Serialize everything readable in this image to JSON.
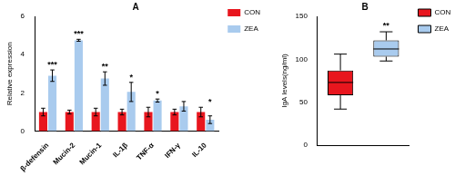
{
  "chart_data": [
    {
      "type": "bar",
      "title": "A",
      "y_label": "Relative expression",
      "categories": [
        "β-defensin",
        "Mucin-2",
        "Mucin-1",
        "IL-1β",
        "TNF-α",
        "IFN-γ",
        "IL-10"
      ],
      "series": [
        {
          "name": "CON",
          "color": "#e8161e",
          "values": [
            1.0,
            1.0,
            1.0,
            1.0,
            1.0,
            1.0,
            1.0
          ],
          "errors": [
            0.2,
            0.1,
            0.2,
            0.15,
            0.25,
            0.15,
            0.25
          ]
        },
        {
          "name": "ZEA",
          "color": "#a9cbee",
          "values": [
            2.9,
            4.75,
            2.75,
            2.05,
            1.6,
            1.3,
            0.6
          ],
          "errors": [
            0.3,
            0.05,
            0.35,
            0.5,
            0.08,
            0.25,
            0.2
          ]
        }
      ],
      "annotations": [
        "***",
        "***",
        "**",
        "*",
        "*",
        null,
        "*"
      ],
      "ylim": [
        0,
        6
      ],
      "yticks": [
        0,
        2,
        4,
        6
      ],
      "grid": false,
      "legend": "right"
    },
    {
      "type": "box",
      "title": "B",
      "y_label": "IgA levels(ng/ml)",
      "series": [
        {
          "name": "CON",
          "color": "#e8161e",
          "min": 42,
          "q1": 58,
          "median": 73,
          "q3": 87,
          "max": 106
        },
        {
          "name": "ZEA",
          "color": "#a9cbee",
          "min": 98,
          "q1": 103,
          "median": 112,
          "q3": 122,
          "max": 132,
          "annotation": "**"
        }
      ],
      "ylim": [
        0,
        150
      ],
      "yticks": [
        0,
        50,
        100,
        150
      ],
      "grid": false,
      "legend": "right",
      "tick_labels": "y"
    }
  ]
}
